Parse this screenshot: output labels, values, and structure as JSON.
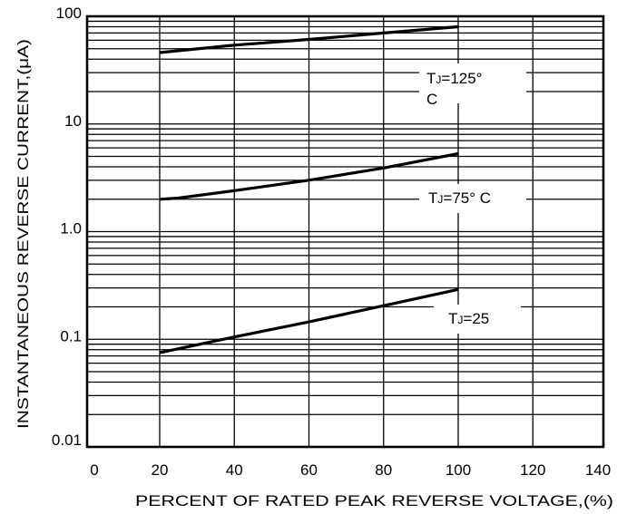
{
  "chart_data": {
    "type": "line",
    "xlabel": "PERCENT OF RATED PEAK REVERSE VOLTAGE,(%)",
    "ylabel": "INSTANTANEOUS REVERSE CURRENT,(μA)",
    "x_scale": "linear",
    "y_scale": "log",
    "xlim": [
      0,
      140
    ],
    "ylim": [
      0.01,
      100
    ],
    "x_ticks": [
      0,
      20,
      40,
      60,
      80,
      100,
      120,
      140
    ],
    "x_tick_labels": [
      "0",
      "20",
      "40",
      "60",
      "80",
      "100",
      "120",
      "140"
    ],
    "y_ticks": [
      0.01,
      0.1,
      1,
      10,
      100
    ],
    "y_tick_labels": [
      "0.01",
      "0.1",
      "1.0",
      "10",
      "100"
    ],
    "grid": true,
    "series": [
      {
        "name": "TJ=125°C",
        "label_text": "TJ=125°",
        "label_fragment": "C",
        "x": [
          20,
          40,
          60,
          80,
          100
        ],
        "y": [
          46,
          54,
          61,
          70,
          80
        ]
      },
      {
        "name": "TJ=75°C",
        "label_text": "TJ=75°  C",
        "x": [
          20,
          25,
          40,
          60,
          80,
          100
        ],
        "y": [
          2.0,
          2.05,
          2.4,
          3.0,
          3.9,
          5.3
        ]
      },
      {
        "name": "TJ=25",
        "label_text": "TJ=25",
        "x": [
          20,
          40,
          60,
          80,
          100
        ],
        "y": [
          0.075,
          0.105,
          0.145,
          0.205,
          0.29
        ]
      }
    ]
  }
}
